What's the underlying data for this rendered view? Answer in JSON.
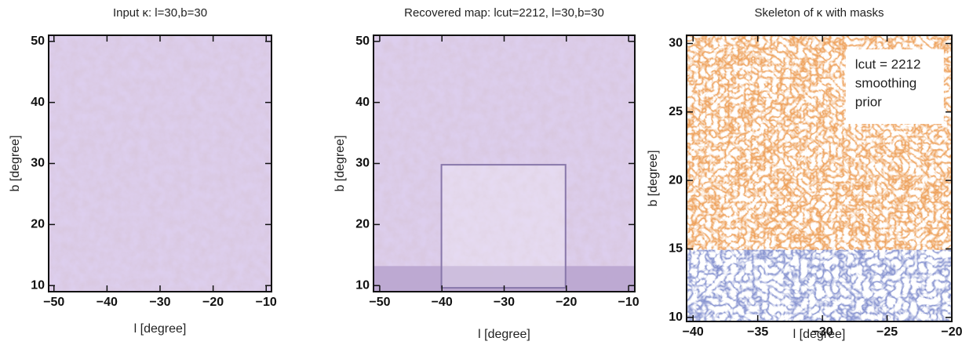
{
  "chart_data": [
    {
      "type": "image",
      "title": "Input κ:  l=30,b=30",
      "x_label": "l [degree]",
      "y_label": "b [degree]",
      "xlim": [
        -51,
        -9
      ],
      "ylim": [
        9,
        51
      ],
      "xticks": [
        {
          "value": -50,
          "label": "−50"
        },
        {
          "value": -40,
          "label": "−40"
        },
        {
          "value": -30,
          "label": "−30"
        },
        {
          "value": -20,
          "label": "−20"
        },
        {
          "value": -10,
          "label": "−10"
        }
      ],
      "yticks": [
        10,
        20,
        30,
        40,
        50
      ]
    },
    {
      "type": "image",
      "title": "Recovered map: lcut=2212, l=30,b=30",
      "x_label": "l [degree]",
      "y_label": "b [degree]",
      "xlim": [
        -51,
        -9
      ],
      "ylim": [
        9,
        51
      ],
      "xticks": [
        {
          "value": -50,
          "label": "−50"
        },
        {
          "value": -40,
          "label": "−40"
        },
        {
          "value": -30,
          "label": "−30"
        },
        {
          "value": -20,
          "label": "−20"
        },
        {
          "value": -10,
          "label": "−10"
        }
      ],
      "yticks": [
        10,
        20,
        30,
        40,
        50
      ]
    },
    {
      "type": "skeleton",
      "title": "Skeleton of κ with masks",
      "x_label": "l [degree]",
      "y_label": "b [degree]",
      "xlim": [
        -40.5,
        -20
      ],
      "ylim": [
        9.7,
        30.6
      ],
      "xticks": [
        {
          "value": -40,
          "label": "−40"
        },
        {
          "value": -35,
          "label": "−35"
        },
        {
          "value": -30,
          "label": "−30"
        },
        {
          "value": -25,
          "label": "−25"
        },
        {
          "value": -20,
          "label": "−20"
        }
      ],
      "yticks": [
        10,
        15,
        20,
        25,
        30
      ],
      "annotations": [
        "lcut = 2212",
        "smoothing",
        "prior"
      ]
    }
  ]
}
